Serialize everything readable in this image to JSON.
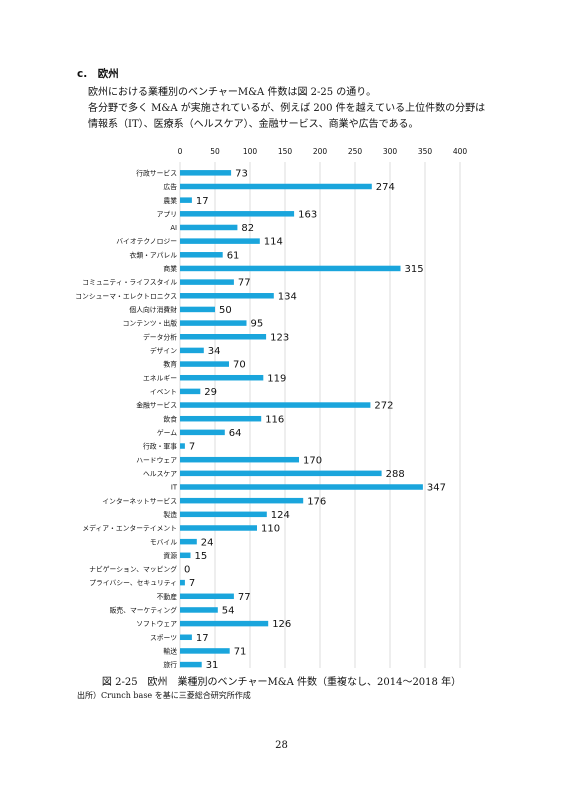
{
  "section": {
    "heading": "c.　欧州"
  },
  "body": {
    "line1": "欧州における業種別のベンチャーM&A 件数は図 2-25 の通り。",
    "line2": "各分野で多く M&A が実施されているが、例えば 200 件を越えている上位件数の分野は情報系（IT）、医療系（ヘルスケア）、金融サービス、商業や広告である。"
  },
  "figure": {
    "caption": "図 2-25　欧州　業種別のベンチャーM&A 件数（重複なし、2014〜2018 年）",
    "source": "出所）Crunch base を基に三菱総合研究所作成"
  },
  "page": {
    "number": "28"
  },
  "chart_data": {
    "type": "bar",
    "orientation": "horizontal",
    "bar_color": "#1aa5dc",
    "grid": true,
    "xlim": [
      0,
      400
    ],
    "xticks": [
      0,
      50,
      100,
      150,
      200,
      250,
      300,
      350,
      400
    ],
    "categories": [
      "行政サービス",
      "広告",
      "農業",
      "アプリ",
      "AI",
      "バイオテクノロジー",
      "衣類・アパレル",
      "商業",
      "コミュニティ・ライフスタイル",
      "コンシューマ・エレクトロニクス",
      "個人向け消費財",
      "コンテンツ・出版",
      "データ分析",
      "デザイン",
      "教育",
      "エネルギー",
      "イベント",
      "金融サービス",
      "飲食",
      "ゲーム",
      "行政・軍事",
      "ハードウェア",
      "ヘルスケア",
      "IT",
      "インターネットサービス",
      "製造",
      "メディア・エンターテイメント",
      "モバイル",
      "資源",
      "ナビゲーション、マッピング",
      "プライバシー、セキュリティ",
      "不動産",
      "販売、マーケティング",
      "ソフトウェア",
      "スポーツ",
      "輸送",
      "旅行"
    ],
    "values": [
      73,
      274,
      17,
      163,
      82,
      114,
      61,
      315,
      77,
      134,
      50,
      95,
      123,
      34,
      70,
      119,
      29,
      272,
      116,
      64,
      7,
      170,
      288,
      347,
      176,
      124,
      110,
      24,
      15,
      0,
      7,
      77,
      54,
      126,
      17,
      71,
      31
    ]
  }
}
